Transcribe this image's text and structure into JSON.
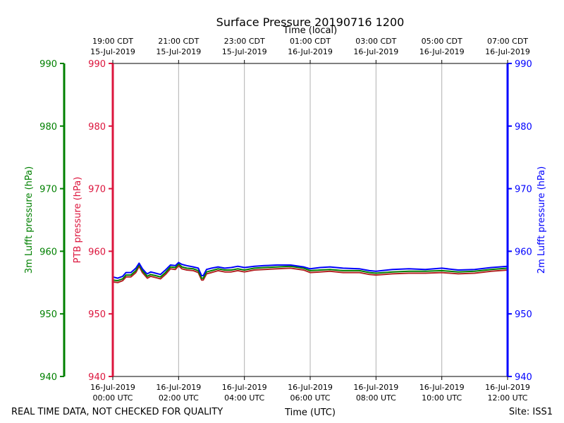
{
  "chart_data": {
    "type": "line",
    "title": "Surface Pressure 20190716 1200",
    "top_axis_label": "Time (local)",
    "xlabel": "Time (UTC)",
    "footer_left": "REAL TIME DATA, NOT CHECKED FOR QUALITY",
    "footer_right": "Site: ISS1",
    "xlim_hours": [
      0,
      12
    ],
    "ylim": [
      940,
      990
    ],
    "y_ticks": [
      940,
      950,
      960,
      970,
      980,
      990
    ],
    "x_ticks_utc": [
      {
        "hour": 0,
        "date": "16-Jul-2019",
        "time": "00:00 UTC"
      },
      {
        "hour": 2,
        "date": "16-Jul-2019",
        "time": "02:00 UTC"
      },
      {
        "hour": 4,
        "date": "16-Jul-2019",
        "time": "04:00 UTC"
      },
      {
        "hour": 6,
        "date": "16-Jul-2019",
        "time": "06:00 UTC"
      },
      {
        "hour": 8,
        "date": "16-Jul-2019",
        "time": "08:00 UTC"
      },
      {
        "hour": 10,
        "date": "16-Jul-2019",
        "time": "10:00 UTC"
      },
      {
        "hour": 12,
        "date": "16-Jul-2019",
        "time": "12:00 UTC"
      }
    ],
    "x_ticks_local": [
      {
        "hour": 0,
        "time": "19:00 CDT",
        "date": "15-Jul-2019"
      },
      {
        "hour": 2,
        "time": "21:00 CDT",
        "date": "15-Jul-2019"
      },
      {
        "hour": 4,
        "time": "23:00 CDT",
        "date": "15-Jul-2019"
      },
      {
        "hour": 6,
        "time": "01:00 CDT",
        "date": "16-Jul-2019"
      },
      {
        "hour": 8,
        "time": "03:00 CDT",
        "date": "16-Jul-2019"
      },
      {
        "hour": 10,
        "time": "05:00 CDT",
        "date": "16-Jul-2019"
      },
      {
        "hour": 12,
        "time": "07:00 CDT",
        "date": "16-Jul-2019"
      }
    ],
    "y_axes": [
      {
        "id": "lufft3m",
        "label": "3m Lufft pressure (hPa)",
        "color": "#008000",
        "side": "left-outer"
      },
      {
        "id": "ptb",
        "label": "PTB pressure (hPa)",
        "color": "#dc143c",
        "side": "left"
      },
      {
        "id": "lufft2m",
        "label": "2m Lufft pressure (hPa)",
        "color": "#0000ff",
        "side": "right"
      }
    ],
    "x_hours": [
      0,
      0.15,
      0.3,
      0.4,
      0.55,
      0.7,
      0.8,
      0.9,
      1.0,
      1.05,
      1.15,
      1.3,
      1.45,
      1.6,
      1.75,
      1.9,
      2.0,
      2.1,
      2.25,
      2.45,
      2.6,
      2.7,
      2.75,
      2.85,
      3.0,
      3.2,
      3.4,
      3.6,
      3.8,
      4.0,
      4.3,
      4.6,
      5.0,
      5.4,
      5.8,
      6.0,
      6.3,
      6.6,
      7.0,
      7.5,
      7.8,
      8.0,
      8.5,
      9.0,
      9.5,
      10.0,
      10.5,
      11.0,
      11.5,
      12.0
    ],
    "series": [
      {
        "name": "PTB pressure",
        "axis": "ptb",
        "color": "#b22222",
        "values": [
          955.1,
          955.0,
          955.3,
          955.9,
          955.9,
          956.6,
          957.6,
          956.6,
          956.0,
          955.7,
          956.0,
          955.8,
          955.6,
          956.3,
          957.2,
          957.1,
          957.7,
          957.2,
          957.0,
          956.9,
          956.6,
          955.4,
          955.4,
          956.4,
          956.6,
          956.9,
          956.7,
          956.7,
          956.9,
          956.7,
          957.0,
          957.1,
          957.2,
          957.3,
          957.0,
          956.6,
          956.7,
          956.8,
          956.6,
          956.6,
          956.3,
          956.2,
          956.4,
          956.5,
          956.5,
          956.6,
          956.4,
          956.5,
          956.8,
          957.0
        ]
      },
      {
        "name": "3m Lufft pressure",
        "axis": "lufft3m",
        "color": "#008000",
        "values": [
          955.4,
          955.3,
          955.6,
          956.2,
          956.2,
          956.9,
          957.9,
          956.9,
          956.3,
          956.0,
          956.3,
          956.1,
          955.9,
          956.6,
          957.5,
          957.4,
          958.0,
          957.5,
          957.3,
          957.2,
          956.9,
          955.7,
          955.7,
          956.7,
          956.9,
          957.2,
          957.0,
          957.0,
          957.2,
          957.0,
          957.3,
          957.4,
          957.5,
          957.6,
          957.3,
          956.9,
          957.0,
          957.1,
          956.9,
          956.9,
          956.6,
          956.5,
          956.7,
          956.8,
          956.8,
          956.9,
          956.7,
          956.8,
          957.1,
          957.3
        ]
      },
      {
        "name": "2m Lufft pressure",
        "axis": "lufft2m",
        "color": "#0000ff",
        "values": [
          955.9,
          955.7,
          956.0,
          956.6,
          956.6,
          957.3,
          958.1,
          957.2,
          956.6,
          956.4,
          956.7,
          956.5,
          956.3,
          957.0,
          957.8,
          957.7,
          958.2,
          957.9,
          957.7,
          957.5,
          957.3,
          956.1,
          956.1,
          957.1,
          957.3,
          957.5,
          957.3,
          957.4,
          957.6,
          957.4,
          957.6,
          957.7,
          957.8,
          957.8,
          957.5,
          957.2,
          957.4,
          957.5,
          957.3,
          957.2,
          956.9,
          956.8,
          957.1,
          957.2,
          957.1,
          957.3,
          957.0,
          957.1,
          957.4,
          957.6
        ]
      }
    ]
  }
}
